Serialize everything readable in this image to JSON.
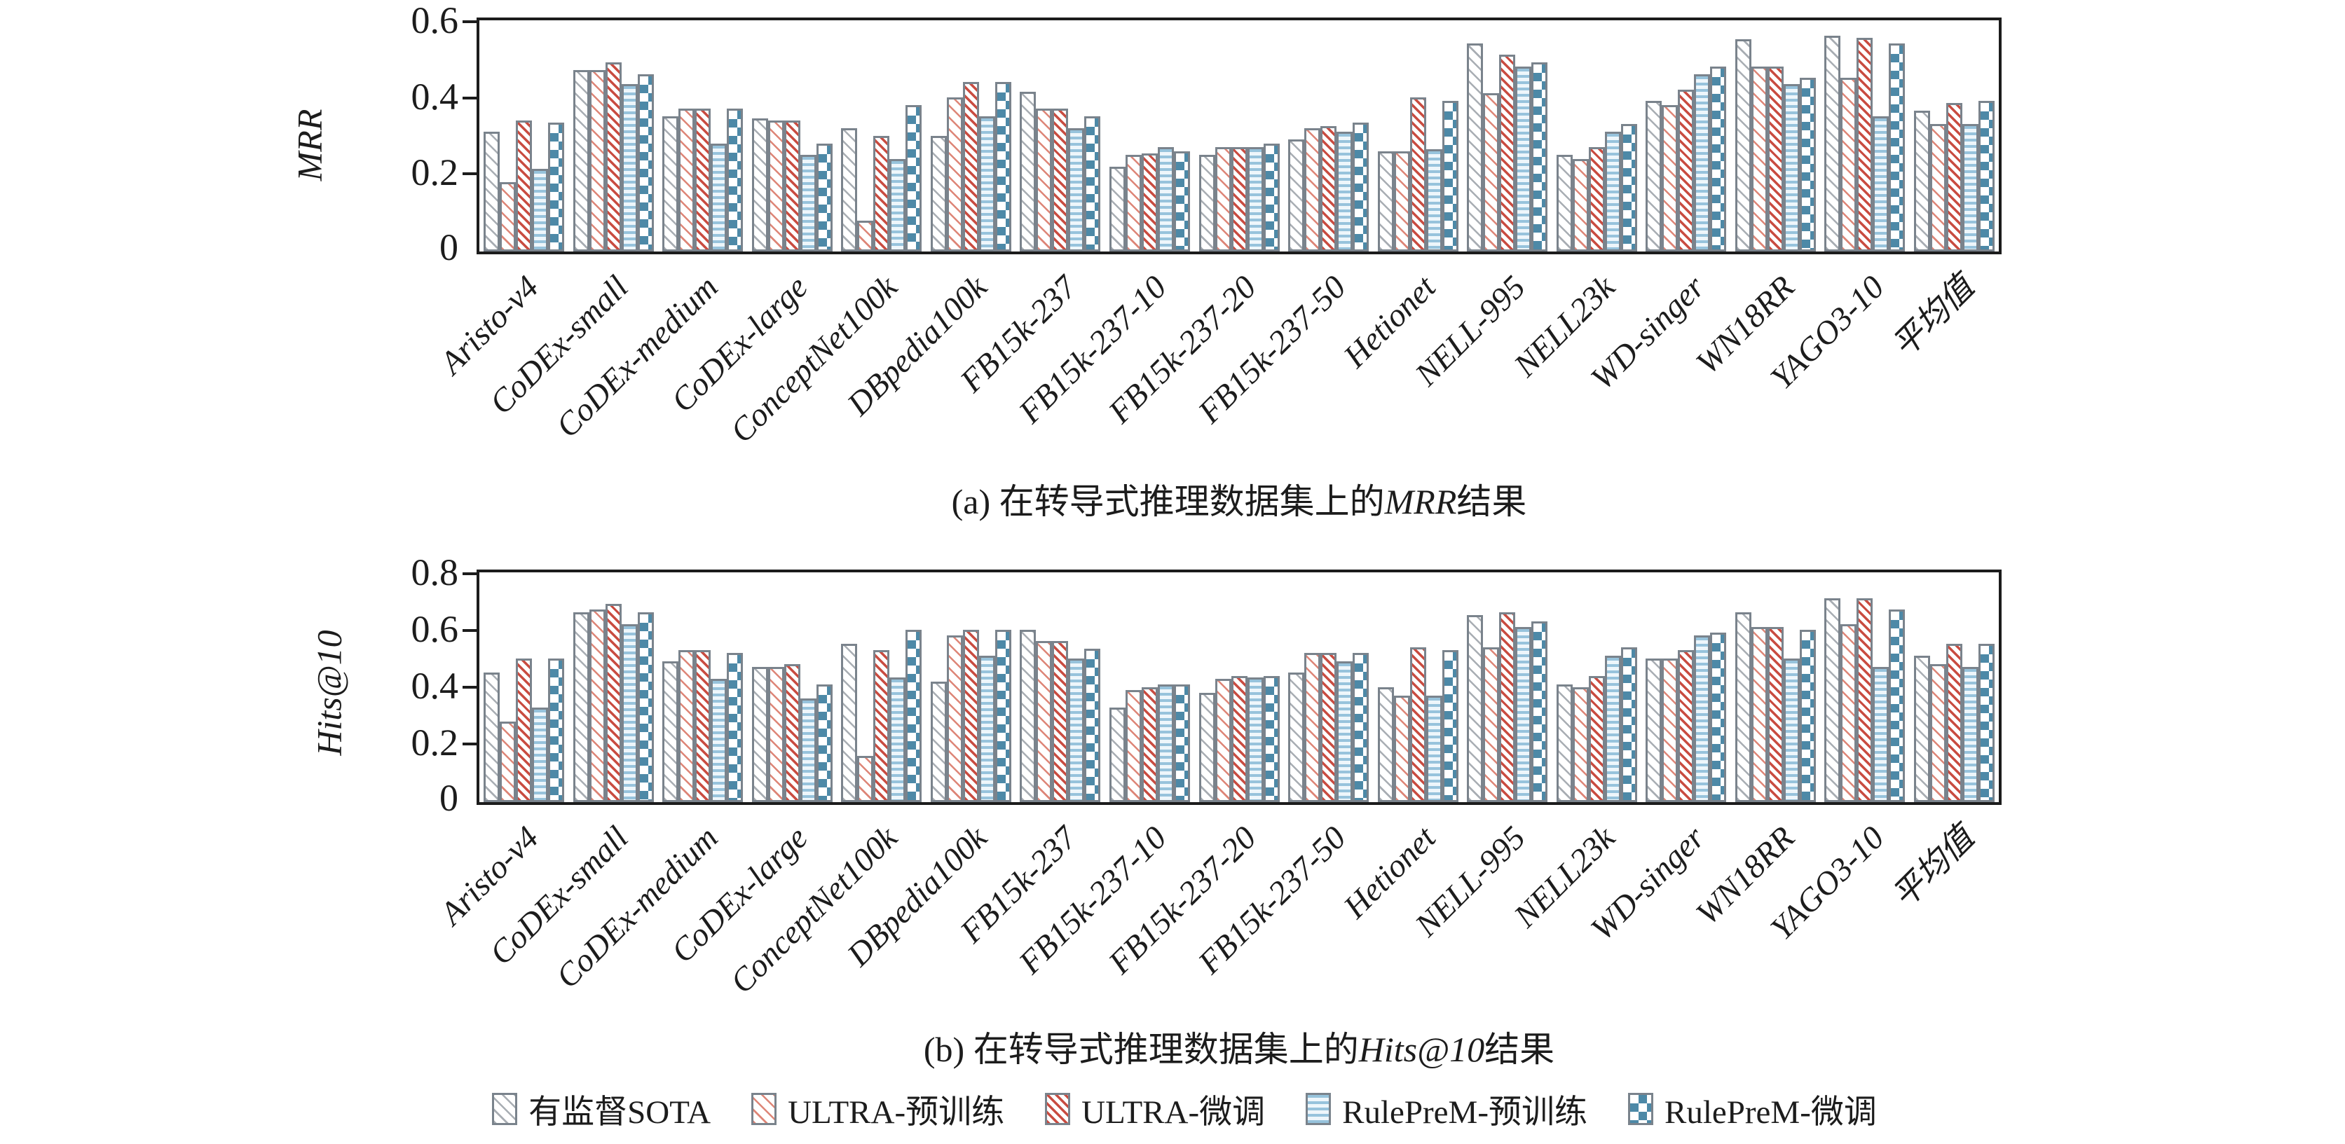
{
  "colors": {
    "bar_border": "#7a838c",
    "axis": "#1c1c1c",
    "series1_gray": "#a8adb3",
    "series2_salmon": "#dd8577",
    "series3_red": "#c94c41",
    "series4_lightblue": "#97c3dc",
    "series5_blue": "#4d89a7"
  },
  "chart_data": [
    {
      "type": "bar",
      "id": "a",
      "ylabel": "MRR",
      "ylim": [
        0,
        0.6
      ],
      "yticks": [
        0,
        0.2,
        0.4,
        0.6
      ],
      "ytick_labels": [
        "0",
        "0.2",
        "0.4",
        "0.6"
      ],
      "grid": "off",
      "legend_position": "bottom-shared",
      "caption_prefix": "(a)  在转导式推理数据集上的",
      "caption_metric": "MRR",
      "caption_suffix": "结果",
      "categories": [
        "Aristo-v4",
        "CoDEx-small",
        "CoDEx-medium",
        "CoDEx-large",
        "ConceptNet100k",
        "DBpedia100k",
        "FB15k-237",
        "FB15k-237-10",
        "FB15k-237-20",
        "FB15k-237-50",
        "Hetionet",
        "NELL-995",
        "NELL23k",
        "WD-singer",
        "WN18RR",
        "YAGO3-10",
        "平均值"
      ],
      "series": [
        {
          "name": "有监督SOTA",
          "values": [
            0.31,
            0.47,
            0.35,
            0.345,
            0.32,
            0.3,
            0.415,
            0.22,
            0.25,
            0.29,
            0.26,
            0.54,
            0.25,
            0.39,
            0.55,
            0.56,
            0.365
          ]
        },
        {
          "name": "ULTRA-预训练",
          "values": [
            0.18,
            0.47,
            0.37,
            0.34,
            0.08,
            0.4,
            0.37,
            0.25,
            0.27,
            0.32,
            0.26,
            0.41,
            0.24,
            0.38,
            0.48,
            0.45,
            0.33
          ]
        },
        {
          "name": "ULTRA-微调",
          "values": [
            0.34,
            0.49,
            0.37,
            0.34,
            0.3,
            0.44,
            0.37,
            0.255,
            0.27,
            0.325,
            0.4,
            0.51,
            0.27,
            0.42,
            0.48,
            0.555,
            0.385
          ]
        },
        {
          "name": "RulePreM-预训练",
          "values": [
            0.215,
            0.435,
            0.28,
            0.25,
            0.24,
            0.35,
            0.32,
            0.27,
            0.27,
            0.31,
            0.265,
            0.48,
            0.31,
            0.46,
            0.435,
            0.35,
            0.33
          ]
        },
        {
          "name": "RulePreM-微调",
          "values": [
            0.335,
            0.46,
            0.37,
            0.28,
            0.38,
            0.44,
            0.35,
            0.26,
            0.28,
            0.335,
            0.39,
            0.49,
            0.33,
            0.48,
            0.45,
            0.54,
            0.39
          ]
        }
      ]
    },
    {
      "type": "bar",
      "id": "b",
      "ylabel": "Hits@10",
      "ylim": [
        0,
        0.8
      ],
      "yticks": [
        0,
        0.2,
        0.4,
        0.6,
        0.8
      ],
      "ytick_labels": [
        "0",
        "0.2",
        "0.4",
        "0.6",
        "0.8"
      ],
      "grid": "off",
      "legend_position": "bottom-shared",
      "caption_prefix": "(b)  在转导式推理数据集上的",
      "caption_metric": "Hits@10",
      "caption_suffix": "结果",
      "categories": [
        "Aristo-v4",
        "CoDEx-small",
        "CoDEx-medium",
        "CoDEx-large",
        "ConceptNet100k",
        "DBpedia100k",
        "FB15k-237",
        "FB15k-237-10",
        "FB15k-237-20",
        "FB15k-237-50",
        "Hetionet",
        "NELL-995",
        "NELL23k",
        "WD-singer",
        "WN18RR",
        "YAGO3-10",
        "平均值"
      ],
      "series": [
        {
          "name": "有监督SOTA",
          "values": [
            0.45,
            0.66,
            0.49,
            0.47,
            0.55,
            0.42,
            0.6,
            0.33,
            0.38,
            0.45,
            0.4,
            0.65,
            0.41,
            0.5,
            0.66,
            0.71,
            0.51
          ]
        },
        {
          "name": "ULTRA-预训练",
          "values": [
            0.28,
            0.67,
            0.53,
            0.47,
            0.16,
            0.58,
            0.56,
            0.39,
            0.43,
            0.52,
            0.37,
            0.54,
            0.4,
            0.5,
            0.61,
            0.62,
            0.48
          ]
        },
        {
          "name": "ULTRA-微调",
          "values": [
            0.5,
            0.69,
            0.53,
            0.48,
            0.53,
            0.6,
            0.56,
            0.4,
            0.44,
            0.52,
            0.54,
            0.66,
            0.44,
            0.53,
            0.61,
            0.71,
            0.55
          ]
        },
        {
          "name": "RulePreM-预训练",
          "values": [
            0.33,
            0.62,
            0.43,
            0.36,
            0.435,
            0.51,
            0.5,
            0.41,
            0.435,
            0.49,
            0.37,
            0.61,
            0.51,
            0.58,
            0.5,
            0.47,
            0.47
          ]
        },
        {
          "name": "RulePreM-微调",
          "values": [
            0.5,
            0.66,
            0.52,
            0.41,
            0.6,
            0.6,
            0.535,
            0.41,
            0.44,
            0.52,
            0.53,
            0.63,
            0.54,
            0.59,
            0.6,
            0.67,
            0.55
          ]
        }
      ]
    }
  ],
  "legend": {
    "items": [
      {
        "label": "有监督SOTA",
        "pattern": "p1"
      },
      {
        "label": "ULTRA-预训练",
        "pattern": "p2"
      },
      {
        "label": "ULTRA-微调",
        "pattern": "p3"
      },
      {
        "label": "RulePreM-预训练",
        "pattern": "p4"
      },
      {
        "label": "RulePreM-微调",
        "pattern": "p5"
      }
    ]
  }
}
